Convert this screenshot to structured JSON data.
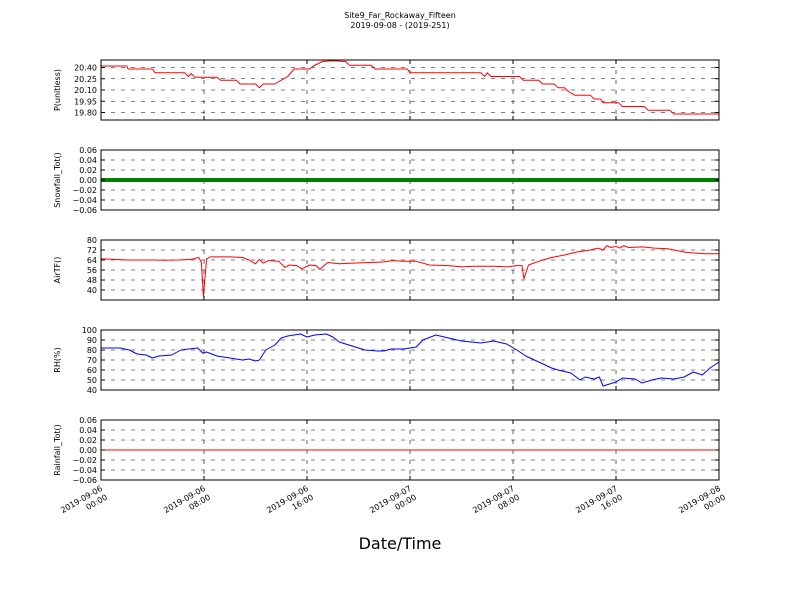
{
  "chart_data": {
    "type": "line",
    "title": "Site9_Far_Rockaway_Fifteen",
    "subtitle": "2019-09-08 - (2019-251)",
    "xlabel": "Date/Time",
    "x_range": [
      "2019-09-06 00:00",
      "2019-09-08 00:00"
    ],
    "x_ticks": [
      {
        "line1": "2019-09-06",
        "line2": "00:00",
        "hour": 0
      },
      {
        "line1": "2019-09-06",
        "line2": "08:00",
        "hour": 8
      },
      {
        "line1": "2019-09-06",
        "line2": "16:00",
        "hour": 16
      },
      {
        "line1": "2019-09-07",
        "line2": "00:00",
        "hour": 24
      },
      {
        "line1": "2019-09-07",
        "line2": "08:00",
        "hour": 32
      },
      {
        "line1": "2019-09-07",
        "line2": "16:00",
        "hour": 40
      },
      {
        "line1": "2019-09-08",
        "line2": "00:00",
        "hour": 48
      }
    ],
    "grid": true,
    "panels": [
      {
        "ylabel": "P(unitless)",
        "ylim": [
          19.7,
          20.5
        ],
        "yticks": [
          "20.40",
          "20.25",
          "20.10",
          "19.95",
          "19.80"
        ],
        "ytick_values": [
          20.4,
          20.25,
          20.1,
          19.95,
          19.8
        ],
        "color": "#ff0000",
        "series_style": "line",
        "data": [
          [
            0,
            20.42
          ],
          [
            2.0,
            20.42
          ],
          [
            2.1,
            20.38
          ],
          [
            4.0,
            20.38
          ],
          [
            4.2,
            20.33
          ],
          [
            6.5,
            20.33
          ],
          [
            6.8,
            20.28
          ],
          [
            7.0,
            20.32
          ],
          [
            7.3,
            20.27
          ],
          [
            9.0,
            20.27
          ],
          [
            9.3,
            20.23
          ],
          [
            10.5,
            20.23
          ],
          [
            10.8,
            20.18
          ],
          [
            12.0,
            20.18
          ],
          [
            12.3,
            20.13
          ],
          [
            12.6,
            20.18
          ],
          [
            13.5,
            20.18
          ],
          [
            14.0,
            20.23
          ],
          [
            14.5,
            20.28
          ],
          [
            15.0,
            20.38
          ],
          [
            16.2,
            20.38
          ],
          [
            16.5,
            20.42
          ],
          [
            17.2,
            20.48
          ],
          [
            18.0,
            20.49
          ],
          [
            19.0,
            20.48
          ],
          [
            19.3,
            20.43
          ],
          [
            21.0,
            20.43
          ],
          [
            21.3,
            20.38
          ],
          [
            23.8,
            20.38
          ],
          [
            24.0,
            20.33
          ],
          [
            29.5,
            20.33
          ],
          [
            29.8,
            20.28
          ],
          [
            30.0,
            20.33
          ],
          [
            30.3,
            20.28
          ],
          [
            32.5,
            20.28
          ],
          [
            32.8,
            20.23
          ],
          [
            34.0,
            20.23
          ],
          [
            34.3,
            20.18
          ],
          [
            35.2,
            20.18
          ],
          [
            35.5,
            20.13
          ],
          [
            36.0,
            20.13
          ],
          [
            36.3,
            20.08
          ],
          [
            36.8,
            20.03
          ],
          [
            38.0,
            20.03
          ],
          [
            38.3,
            19.98
          ],
          [
            38.8,
            19.98
          ],
          [
            39.0,
            19.93
          ],
          [
            40.2,
            19.93
          ],
          [
            40.5,
            19.88
          ],
          [
            42.2,
            19.88
          ],
          [
            42.5,
            19.83
          ],
          [
            44.2,
            19.83
          ],
          [
            44.5,
            19.78
          ],
          [
            48.0,
            19.78
          ]
        ]
      },
      {
        "ylabel": "Snowfall_Tot()",
        "ylim": [
          -0.06,
          0.06
        ],
        "yticks": [
          "0.06",
          "0.04",
          "0.02",
          "0.00",
          "−0.02",
          "−0.04",
          "−0.06"
        ],
        "ytick_values": [
          0.06,
          0.04,
          0.02,
          0.0,
          -0.02,
          -0.04,
          -0.06
        ],
        "color": "#008000",
        "series_style": "thick-line",
        "data": [
          [
            0,
            0
          ],
          [
            48,
            0
          ]
        ]
      },
      {
        "ylabel": "AirTF()",
        "ylim": [
          32,
          80
        ],
        "yticks": [
          "80",
          "72",
          "64",
          "56",
          "48",
          "40"
        ],
        "ytick_values": [
          80,
          72,
          64,
          56,
          48,
          40
        ],
        "color": "#ff0000",
        "series_style": "line",
        "data": [
          [
            0,
            65
          ],
          [
            1,
            64.5
          ],
          [
            2,
            64
          ],
          [
            3,
            64
          ],
          [
            4,
            64
          ],
          [
            5,
            63.8
          ],
          [
            6,
            64
          ],
          [
            7,
            64.5
          ],
          [
            7.6,
            66
          ],
          [
            7.8,
            62
          ],
          [
            7.95,
            35
          ],
          [
            8.2,
            65
          ],
          [
            8.5,
            66.5
          ],
          [
            10,
            66.5
          ],
          [
            11,
            66
          ],
          [
            11.5,
            64
          ],
          [
            12,
            61
          ],
          [
            12.3,
            64.5
          ],
          [
            12.6,
            61.5
          ],
          [
            13,
            63.5
          ],
          [
            13.8,
            63
          ],
          [
            14.3,
            58
          ],
          [
            14.6,
            60
          ],
          [
            15.2,
            59.5
          ],
          [
            15.6,
            57
          ],
          [
            16.2,
            60
          ],
          [
            16.7,
            59.5
          ],
          [
            17,
            56.5
          ],
          [
            17.6,
            62
          ],
          [
            18.5,
            61
          ],
          [
            19.5,
            61.5
          ],
          [
            21,
            62
          ],
          [
            22,
            62.5
          ],
          [
            22.6,
            63.5
          ],
          [
            23.5,
            63
          ],
          [
            24.5,
            63
          ],
          [
            25.5,
            60
          ],
          [
            27,
            59.5
          ],
          [
            28,
            58.5
          ],
          [
            29,
            59
          ],
          [
            30.5,
            59
          ],
          [
            31.5,
            58.5
          ],
          [
            32.3,
            59.5
          ],
          [
            32.7,
            59.5
          ],
          [
            32.85,
            49
          ],
          [
            33.2,
            60
          ],
          [
            34,
            63
          ],
          [
            34.5,
            64.5
          ],
          [
            35,
            66
          ],
          [
            36,
            68
          ],
          [
            37,
            70.5
          ],
          [
            38,
            72
          ],
          [
            38.6,
            73.5
          ],
          [
            39,
            72
          ],
          [
            39.3,
            75.5
          ],
          [
            39.6,
            74
          ],
          [
            40,
            75
          ],
          [
            40.3,
            73.5
          ],
          [
            40.6,
            75.5
          ],
          [
            41,
            74
          ],
          [
            42,
            74.5
          ],
          [
            43,
            73.5
          ],
          [
            44,
            73
          ],
          [
            44.5,
            72
          ],
          [
            45.5,
            70
          ],
          [
            47,
            69
          ],
          [
            48,
            69
          ]
        ]
      },
      {
        "ylabel": "RH(%)",
        "ylim": [
          40,
          100
        ],
        "yticks": [
          "100",
          "90",
          "80",
          "70",
          "60",
          "50",
          "40"
        ],
        "ytick_values": [
          100,
          90,
          80,
          70,
          60,
          50,
          40
        ],
        "color": "#0000ff",
        "series_style": "line",
        "data": [
          [
            0,
            82
          ],
          [
            1.5,
            82
          ],
          [
            2.2,
            80
          ],
          [
            2.8,
            76
          ],
          [
            3.5,
            75
          ],
          [
            4,
            72
          ],
          [
            4.5,
            74
          ],
          [
            5.5,
            75
          ],
          [
            6.2,
            80
          ],
          [
            6.8,
            81
          ],
          [
            7.5,
            82
          ],
          [
            7.9,
            77
          ],
          [
            8.2,
            78
          ],
          [
            9,
            74
          ],
          [
            10,
            72
          ],
          [
            11,
            70
          ],
          [
            11.5,
            71
          ],
          [
            12,
            69
          ],
          [
            12.3,
            70
          ],
          [
            12.8,
            80
          ],
          [
            13.5,
            85
          ],
          [
            14,
            92
          ],
          [
            14.5,
            94
          ],
          [
            15,
            95
          ],
          [
            15.5,
            96
          ],
          [
            16,
            93
          ],
          [
            16.6,
            95
          ],
          [
            17.5,
            96
          ],
          [
            18,
            93
          ],
          [
            18.5,
            88
          ],
          [
            19.5,
            84
          ],
          [
            20.5,
            80
          ],
          [
            21.5,
            79
          ],
          [
            22,
            79
          ],
          [
            22.5,
            81
          ],
          [
            23.5,
            81
          ],
          [
            24.5,
            83
          ],
          [
            25,
            90
          ],
          [
            26,
            95
          ],
          [
            27,
            92
          ],
          [
            28,
            89
          ],
          [
            29.5,
            87
          ],
          [
            30.5,
            89
          ],
          [
            31.5,
            86
          ],
          [
            32.3,
            80
          ],
          [
            33,
            74
          ],
          [
            34,
            68
          ],
          [
            35,
            62
          ],
          [
            35.5,
            60
          ],
          [
            36.5,
            57
          ],
          [
            37.2,
            50
          ],
          [
            37.6,
            53
          ],
          [
            38.3,
            51
          ],
          [
            38.7,
            53
          ],
          [
            39,
            44
          ],
          [
            40,
            48
          ],
          [
            40.5,
            52
          ],
          [
            41.5,
            51
          ],
          [
            42,
            47
          ],
          [
            42.8,
            50
          ],
          [
            43.5,
            52
          ],
          [
            44.5,
            51
          ],
          [
            45.3,
            53
          ],
          [
            46,
            58
          ],
          [
            46.7,
            55
          ],
          [
            47.3,
            62
          ],
          [
            48,
            68
          ]
        ]
      },
      {
        "ylabel": "Rainfall_Tot()",
        "ylim": [
          -0.06,
          0.06
        ],
        "yticks": [
          "0.06",
          "0.04",
          "0.02",
          "0.00",
          "−0.02",
          "−0.04",
          "−0.06"
        ],
        "ytick_values": [
          0.06,
          0.04,
          0.02,
          0.0,
          -0.02,
          -0.04,
          -0.06
        ],
        "color": "#ff0000",
        "series_style": "line",
        "data": [
          [
            0,
            0
          ],
          [
            48,
            0
          ]
        ]
      }
    ]
  }
}
